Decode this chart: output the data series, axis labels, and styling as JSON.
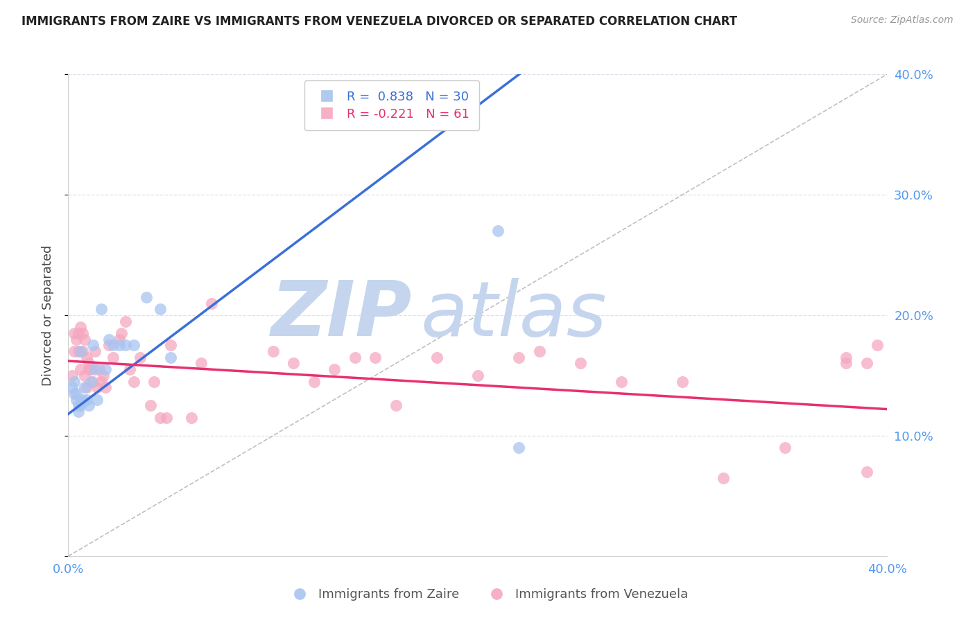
{
  "title": "IMMIGRANTS FROM ZAIRE VS IMMIGRANTS FROM VENEZUELA DIVORCED OR SEPARATED CORRELATION CHART",
  "source": "Source: ZipAtlas.com",
  "ylabel": "Divorced or Separated",
  "xmin": 0.0,
  "xmax": 0.4,
  "ymin": 0.0,
  "ymax": 0.4,
  "zaire_R": 0.838,
  "zaire_N": 30,
  "venezuela_R": -0.221,
  "venezuela_N": 61,
  "zaire_color": "#a8c4f0",
  "venezuela_color": "#f5a8c0",
  "zaire_line_color": "#3a6fd8",
  "venezuela_line_color": "#e83070",
  "ref_line_color": "#b0b0b0",
  "background_color": "#ffffff",
  "grid_color": "#d8dde8",
  "watermark_zip_color": "#c5d5ee",
  "watermark_atlas_color": "#c5d5ee",
  "axis_label_color": "#5599ee",
  "title_color": "#222222",
  "source_color": "#999999",
  "zaire_line_intercept": 0.118,
  "zaire_line_slope": 1.28,
  "venezuela_line_intercept": 0.162,
  "venezuela_line_slope": -0.1,
  "zaire_x": [
    0.002,
    0.003,
    0.003,
    0.004,
    0.004,
    0.005,
    0.005,
    0.006,
    0.006,
    0.007,
    0.007,
    0.008,
    0.009,
    0.01,
    0.011,
    0.012,
    0.013,
    0.014,
    0.016,
    0.018,
    0.02,
    0.022,
    0.025,
    0.028,
    0.032,
    0.038,
    0.045,
    0.05,
    0.21,
    0.22
  ],
  "zaire_y": [
    0.14,
    0.135,
    0.145,
    0.13,
    0.135,
    0.12,
    0.125,
    0.17,
    0.125,
    0.13,
    0.128,
    0.14,
    0.13,
    0.125,
    0.145,
    0.175,
    0.155,
    0.13,
    0.205,
    0.155,
    0.18,
    0.175,
    0.175,
    0.175,
    0.175,
    0.215,
    0.205,
    0.165,
    0.27,
    0.09
  ],
  "venezuela_x": [
    0.002,
    0.003,
    0.003,
    0.004,
    0.005,
    0.005,
    0.006,
    0.006,
    0.007,
    0.007,
    0.008,
    0.008,
    0.009,
    0.009,
    0.01,
    0.01,
    0.011,
    0.012,
    0.013,
    0.014,
    0.015,
    0.016,
    0.017,
    0.018,
    0.02,
    0.022,
    0.025,
    0.026,
    0.028,
    0.03,
    0.032,
    0.035,
    0.04,
    0.042,
    0.045,
    0.048,
    0.05,
    0.06,
    0.065,
    0.07,
    0.1,
    0.11,
    0.12,
    0.13,
    0.14,
    0.15,
    0.16,
    0.18,
    0.2,
    0.22,
    0.23,
    0.25,
    0.27,
    0.3,
    0.32,
    0.35,
    0.38,
    0.38,
    0.39,
    0.39,
    0.395
  ],
  "venezuela_y": [
    0.15,
    0.185,
    0.17,
    0.18,
    0.185,
    0.17,
    0.19,
    0.155,
    0.185,
    0.17,
    0.18,
    0.15,
    0.165,
    0.14,
    0.16,
    0.155,
    0.155,
    0.145,
    0.17,
    0.14,
    0.155,
    0.145,
    0.15,
    0.14,
    0.175,
    0.165,
    0.18,
    0.185,
    0.195,
    0.155,
    0.145,
    0.165,
    0.125,
    0.145,
    0.115,
    0.115,
    0.175,
    0.115,
    0.16,
    0.21,
    0.17,
    0.16,
    0.145,
    0.155,
    0.165,
    0.165,
    0.125,
    0.165,
    0.15,
    0.165,
    0.17,
    0.16,
    0.145,
    0.145,
    0.065,
    0.09,
    0.16,
    0.165,
    0.16,
    0.07,
    0.175
  ]
}
